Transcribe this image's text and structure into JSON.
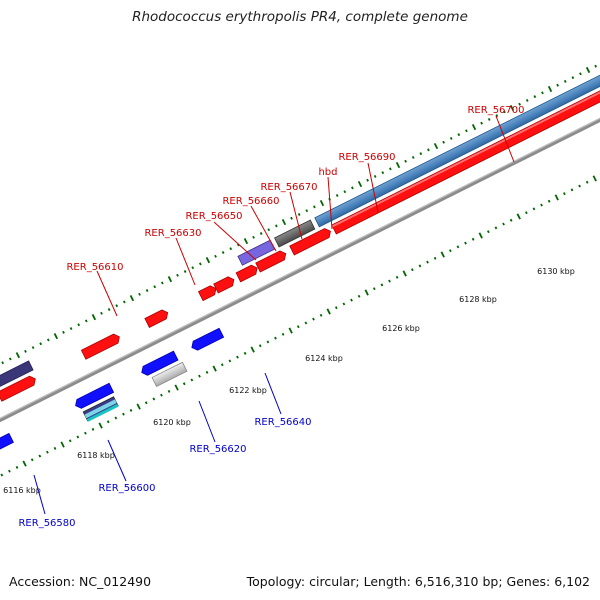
{
  "title": "Rhodococcus erythropolis PR4, complete genome",
  "footer": {
    "accession": "Accession: NC_012490",
    "summary": "Topology: circular; Length: 6,516,310 bp; Genes: 6,102"
  },
  "colors": {
    "forward": "#ff0000",
    "reverse": "#0000ee",
    "forward_label": "#cc0000",
    "reverse_label": "#0000cc",
    "tick": "#006600",
    "axis": "#888888"
  },
  "scale_ticks": [
    {
      "kbp": 6116,
      "label": "6116 kbp"
    },
    {
      "kbp": 6118,
      "label": "6118 kbp"
    },
    {
      "kbp": 6120,
      "label": "6120 kbp"
    },
    {
      "kbp": 6122,
      "label": "6122 kbp"
    },
    {
      "kbp": 6124,
      "label": "6124 kbp"
    },
    {
      "kbp": 6126,
      "label": "6126 kbp"
    },
    {
      "kbp": 6128,
      "label": "6128 kbp"
    },
    {
      "kbp": 6130,
      "label": "6130 kbp"
    }
  ],
  "gene_labels": [
    {
      "name": "RER_56610",
      "strand": "forward"
    },
    {
      "name": "RER_56630",
      "strand": "forward"
    },
    {
      "name": "RER_56650",
      "strand": "forward"
    },
    {
      "name": "RER_56660",
      "strand": "forward"
    },
    {
      "name": "RER_56670",
      "strand": "forward"
    },
    {
      "name": "hbd",
      "strand": "forward"
    },
    {
      "name": "RER_56690",
      "strand": "forward"
    },
    {
      "name": "RER_56700",
      "strand": "forward"
    },
    {
      "name": "RER_56580",
      "strand": "reverse"
    },
    {
      "name": "RER_56600",
      "strand": "reverse"
    },
    {
      "name": "RER_56620",
      "strand": "reverse"
    },
    {
      "name": "RER_56640",
      "strand": "reverse"
    }
  ]
}
